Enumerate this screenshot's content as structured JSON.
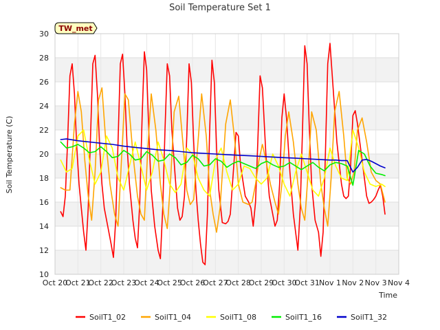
{
  "chart_data": {
    "type": "line",
    "title": "Soil Temperature Set 1",
    "xlabel": "Time",
    "ylabel": "Soil Temperature (C)",
    "badge": "TW_met",
    "xlim": [
      0,
      15
    ],
    "ylim": [
      10,
      30
    ],
    "yticks": [
      10,
      12,
      14,
      16,
      18,
      20,
      22,
      24,
      26,
      28,
      30
    ],
    "xticks": [
      {
        "x": 0,
        "label": "Oct 20"
      },
      {
        "x": 1,
        "label": "Oct 21"
      },
      {
        "x": 2,
        "label": "Oct 22"
      },
      {
        "x": 3,
        "label": "Oct 23"
      },
      {
        "x": 4,
        "label": "Oct 24"
      },
      {
        "x": 5,
        "label": "Oct 25"
      },
      {
        "x": 6,
        "label": "Oct 26"
      },
      {
        "x": 7,
        "label": "Oct 27"
      },
      {
        "x": 8,
        "label": "Oct 28"
      },
      {
        "x": 9,
        "label": "Oct 29"
      },
      {
        "x": 10,
        "label": "Oct 30"
      },
      {
        "x": 11,
        "label": "Oct 31"
      },
      {
        "x": 12,
        "label": "Nov 1"
      },
      {
        "x": 13,
        "label": "Nov 2"
      },
      {
        "x": 14,
        "label": "Nov 3"
      },
      {
        "x": 15,
        "label": "Nov 4"
      }
    ],
    "grid": true,
    "legend_position": "bottom",
    "series": [
      {
        "name": "SoilT1_02",
        "color": "#ff0000",
        "x": [
          0.25,
          0.35,
          0.45,
          0.55,
          0.65,
          0.75,
          0.85,
          0.95,
          1.05,
          1.15,
          1.25,
          1.35,
          1.45,
          1.55,
          1.65,
          1.75,
          1.85,
          1.95,
          2.05,
          2.15,
          2.3,
          2.45,
          2.55,
          2.65,
          2.75,
          2.85,
          2.95,
          3.05,
          3.15,
          3.25,
          3.4,
          3.5,
          3.6,
          3.7,
          3.8,
          3.9,
          4.0,
          4.1,
          4.2,
          4.35,
          4.5,
          4.6,
          4.7,
          4.8,
          4.9,
          5.0,
          5.1,
          5.25,
          5.35,
          5.45,
          5.55,
          5.65,
          5.75,
          5.85,
          5.95,
          6.05,
          6.15,
          6.25,
          6.35,
          6.45,
          6.55,
          6.65,
          6.75,
          6.85,
          6.95,
          7.05,
          7.15,
          7.3,
          7.45,
          7.55,
          7.65,
          7.8,
          7.9,
          8.0,
          8.1,
          8.3,
          8.45,
          8.55,
          8.65,
          8.75,
          8.85,
          8.95,
          9.05,
          9.2,
          9.35,
          9.5,
          9.6,
          9.7,
          9.8,
          9.9,
          10.0,
          10.1,
          10.25,
          10.4,
          10.5,
          10.6,
          10.7,
          10.8,
          10.9,
          11.0,
          11.1,
          11.2,
          11.35,
          11.5,
          11.6,
          11.7,
          11.8,
          11.9,
          12.0,
          12.1,
          12.3,
          12.5,
          12.6,
          12.7,
          12.8,
          12.9,
          13.0,
          13.1,
          13.2,
          13.3,
          13.4,
          13.5,
          13.6,
          13.7,
          13.8,
          13.9,
          14.0,
          14.1,
          14.2,
          14.3,
          14.4
        ],
        "y": [
          15.2,
          14.8,
          16.5,
          21.0,
          26.5,
          27.5,
          25.0,
          20.5,
          17.5,
          15.5,
          13.5,
          12.0,
          15.5,
          21.5,
          27.5,
          28.2,
          25.0,
          20.5,
          17.5,
          15.5,
          14.0,
          12.5,
          11.4,
          14.5,
          21.0,
          27.5,
          28.3,
          25.0,
          20.5,
          17.5,
          14.5,
          13.0,
          12.2,
          16.0,
          23.0,
          28.5,
          27.0,
          21.5,
          17.0,
          14.0,
          12.0,
          11.3,
          15.5,
          22.0,
          27.5,
          26.5,
          22.0,
          18.0,
          15.5,
          14.5,
          14.8,
          16.5,
          21.5,
          27.5,
          26.0,
          21.0,
          17.0,
          14.5,
          12.5,
          11.0,
          10.8,
          15.0,
          22.0,
          27.8,
          26.0,
          20.5,
          17.0,
          14.3,
          14.2,
          14.4,
          15.0,
          19.0,
          21.8,
          21.5,
          19.0,
          16.5,
          16.0,
          15.5,
          14.0,
          16.0,
          21.0,
          26.5,
          25.5,
          20.0,
          16.5,
          15.0,
          14.0,
          14.5,
          17.5,
          23.0,
          25.0,
          23.0,
          18.5,
          15.0,
          13.5,
          12.0,
          15.5,
          22.0,
          29.0,
          27.5,
          22.0,
          17.5,
          14.5,
          13.5,
          11.5,
          13.5,
          20.0,
          27.5,
          29.2,
          26.5,
          21.0,
          17.5,
          16.5,
          16.3,
          16.5,
          19.0,
          23.2,
          23.6,
          22.5,
          21.0,
          19.5,
          18.0,
          16.5,
          15.9,
          16.0,
          16.2,
          16.5,
          17.0,
          17.4,
          16.5,
          15.0
        ]
      },
      {
        "name": "SoilT1_04",
        "color": "#ffa500",
        "x": [
          0.25,
          0.45,
          0.65,
          0.85,
          1.0,
          1.15,
          1.3,
          1.45,
          1.6,
          1.75,
          1.9,
          2.05,
          2.2,
          2.4,
          2.6,
          2.75,
          2.9,
          3.05,
          3.2,
          3.4,
          3.6,
          3.75,
          3.9,
          4.05,
          4.2,
          4.4,
          4.6,
          4.75,
          4.9,
          5.05,
          5.2,
          5.4,
          5.6,
          5.75,
          5.9,
          6.05,
          6.2,
          6.4,
          6.6,
          6.75,
          6.9,
          7.05,
          7.2,
          7.45,
          7.65,
          7.85,
          8.0,
          8.2,
          8.45,
          8.6,
          8.75,
          8.9,
          9.05,
          9.2,
          9.4,
          9.6,
          9.75,
          9.9,
          10.05,
          10.2,
          10.4,
          10.6,
          10.75,
          10.9,
          11.05,
          11.2,
          11.4,
          11.6,
          11.75,
          11.9,
          12.05,
          12.2,
          12.4,
          12.6,
          12.75,
          12.9,
          13.05,
          13.2,
          13.4,
          13.6,
          13.8,
          14.0,
          14.2,
          14.4
        ],
        "y": [
          17.2,
          17.0,
          17.0,
          22.5,
          25.2,
          23.5,
          19.5,
          16.5,
          14.5,
          18.5,
          24.5,
          25.5,
          21.5,
          17.5,
          15.0,
          14.0,
          19.5,
          25.0,
          24.5,
          20.0,
          16.5,
          15.0,
          14.5,
          20.5,
          25.0,
          22.0,
          17.5,
          15.0,
          13.8,
          18.0,
          23.5,
          24.8,
          20.5,
          17.0,
          15.8,
          16.2,
          20.0,
          25.0,
          21.5,
          17.0,
          15.0,
          13.5,
          15.5,
          22.5,
          24.5,
          21.0,
          17.5,
          16.0,
          15.8,
          16.0,
          17.5,
          19.5,
          20.8,
          19.5,
          17.5,
          16.0,
          15.0,
          17.5,
          21.5,
          23.5,
          21.0,
          17.5,
          15.5,
          14.5,
          18.5,
          23.5,
          22.0,
          17.5,
          15.5,
          14.0,
          18.0,
          23.5,
          25.2,
          21.5,
          18.0,
          17.5,
          18.5,
          22.0,
          23.0,
          21.0,
          18.5,
          17.8,
          17.5,
          16.0
        ]
      },
      {
        "name": "SoilT1_08",
        "color": "#ffff00",
        "x": [
          0.25,
          0.5,
          0.75,
          1.0,
          1.25,
          1.5,
          1.75,
          2.0,
          2.25,
          2.5,
          2.75,
          3.0,
          3.25,
          3.5,
          3.75,
          4.0,
          4.25,
          4.5,
          4.75,
          5.0,
          5.25,
          5.5,
          5.75,
          6.0,
          6.25,
          6.5,
          6.75,
          7.0,
          7.25,
          7.5,
          7.75,
          8.0,
          8.25,
          8.5,
          8.75,
          9.0,
          9.25,
          9.5,
          9.75,
          10.0,
          10.25,
          10.5,
          10.75,
          11.0,
          11.25,
          11.5,
          11.75,
          12.0,
          12.25,
          12.5,
          12.75,
          13.0,
          13.25,
          13.5,
          13.75,
          14.0,
          14.25,
          14.4
        ],
        "y": [
          19.5,
          18.5,
          18.8,
          21.5,
          22.0,
          19.5,
          17.5,
          18.5,
          21.5,
          20.5,
          18.0,
          17.0,
          19.0,
          21.0,
          19.0,
          17.0,
          18.5,
          21.0,
          19.5,
          17.5,
          16.8,
          17.5,
          20.5,
          20.0,
          18.0,
          17.0,
          16.5,
          19.5,
          20.5,
          18.5,
          17.0,
          17.5,
          19.0,
          18.8,
          18.0,
          17.5,
          18.0,
          20.0,
          19.0,
          17.5,
          16.5,
          18.5,
          20.0,
          18.5,
          17.0,
          16.5,
          18.0,
          20.5,
          19.0,
          18.0,
          17.8,
          22.0,
          20.5,
          18.5,
          17.5,
          17.3,
          17.5,
          17.3
        ]
      },
      {
        "name": "SoilT1_16",
        "color": "#00ee00",
        "x": [
          0.25,
          0.5,
          0.75,
          1.0,
          1.25,
          1.5,
          1.75,
          2.0,
          2.25,
          2.5,
          2.75,
          3.0,
          3.25,
          3.5,
          3.75,
          4.0,
          4.25,
          4.5,
          4.75,
          5.0,
          5.25,
          5.5,
          5.75,
          6.0,
          6.25,
          6.5,
          6.75,
          7.0,
          7.25,
          7.5,
          7.75,
          8.0,
          8.25,
          8.5,
          8.75,
          9.0,
          9.25,
          9.5,
          9.75,
          10.0,
          10.25,
          10.5,
          10.75,
          11.0,
          11.25,
          11.5,
          11.75,
          12.0,
          12.25,
          12.5,
          12.75,
          13.0,
          13.25,
          13.5,
          13.75,
          14.0,
          14.25,
          14.4
        ],
        "y": [
          21.0,
          20.5,
          20.6,
          20.8,
          20.5,
          20.1,
          20.2,
          20.6,
          20.2,
          19.7,
          19.8,
          20.3,
          20.0,
          19.5,
          19.6,
          20.2,
          19.9,
          19.4,
          19.5,
          20.0,
          19.7,
          19.1,
          19.3,
          19.9,
          19.6,
          19.0,
          19.1,
          19.6,
          19.4,
          18.9,
          19.2,
          19.4,
          19.2,
          19.0,
          18.8,
          19.2,
          19.4,
          19.1,
          18.9,
          19.0,
          19.3,
          19.0,
          18.7,
          19.0,
          19.3,
          18.9,
          18.6,
          19.1,
          19.3,
          19.2,
          19.0,
          17.4,
          20.3,
          20.0,
          19.0,
          18.4,
          18.3,
          18.2
        ]
      },
      {
        "name": "SoilT1_32",
        "color": "#0000cc",
        "x": [
          0.25,
          0.5,
          1.0,
          1.5,
          2.0,
          2.5,
          3.0,
          3.5,
          4.0,
          4.5,
          5.0,
          5.5,
          6.0,
          6.5,
          7.0,
          7.5,
          8.0,
          8.5,
          9.0,
          9.5,
          10.0,
          10.5,
          11.0,
          11.5,
          12.0,
          12.25,
          12.5,
          12.75,
          13.0,
          13.2,
          13.4,
          13.6,
          13.8,
          14.0,
          14.2,
          14.4
        ],
        "y": [
          21.2,
          21.25,
          21.1,
          21.0,
          20.9,
          20.8,
          20.65,
          20.55,
          20.45,
          20.35,
          20.3,
          20.2,
          20.1,
          20.05,
          20.0,
          19.95,
          19.9,
          19.85,
          19.8,
          19.75,
          19.7,
          19.65,
          19.6,
          19.55,
          19.5,
          19.5,
          19.45,
          19.45,
          18.5,
          18.9,
          19.5,
          19.55,
          19.4,
          19.2,
          19.0,
          18.85
        ]
      }
    ]
  }
}
